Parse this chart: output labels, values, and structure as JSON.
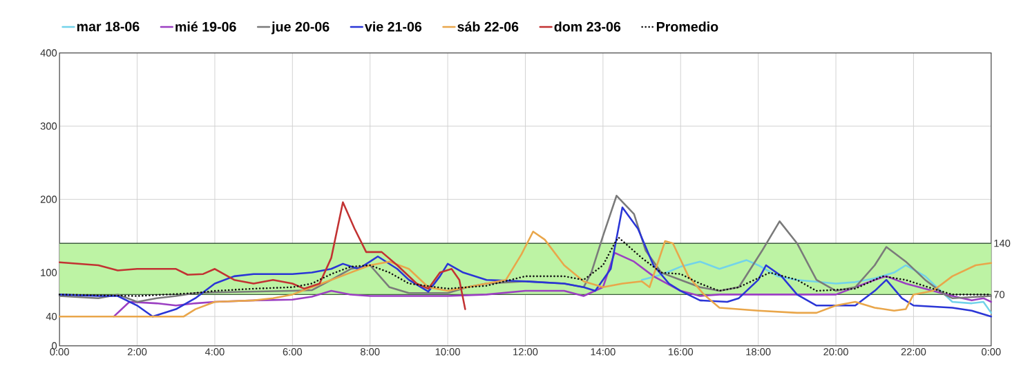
{
  "chart_data": {
    "type": "line",
    "xlim": [
      0,
      24
    ],
    "ylim": [
      0,
      400
    ],
    "xticks": [
      {
        "value": 0,
        "label": "0:00"
      },
      {
        "value": 2,
        "label": "2:00"
      },
      {
        "value": 4,
        "label": "4:00"
      },
      {
        "value": 6,
        "label": "6:00"
      },
      {
        "value": 8,
        "label": "8:00"
      },
      {
        "value": 10,
        "label": "10:00"
      },
      {
        "value": 12,
        "label": "12:00"
      },
      {
        "value": 14,
        "label": "14:00"
      },
      {
        "value": 16,
        "label": "16:00"
      },
      {
        "value": 18,
        "label": "18:00"
      },
      {
        "value": 20,
        "label": "20:00"
      },
      {
        "value": 22,
        "label": "22:00"
      },
      {
        "value": 24,
        "label": "0:00"
      }
    ],
    "yticks": [
      0,
      40,
      100,
      200,
      300,
      400
    ],
    "grid": true,
    "legend": "top",
    "marker": "none",
    "line_style": "solid",
    "bands": [
      {
        "axis": "y",
        "from": 70,
        "to": 140,
        "color": "#bdf3a4"
      }
    ],
    "ref_lines": [
      {
        "axis": "y",
        "value": 140,
        "label": "140",
        "color": "#3f5f3f"
      },
      {
        "axis": "y",
        "value": 70,
        "label": "70",
        "color": "#3f5f3f"
      }
    ],
    "series": [
      {
        "name": "mar 18-06",
        "color": "#72d3ea",
        "x": [
          15,
          15.5,
          16,
          16.5,
          17,
          17.7,
          18,
          18.5,
          19,
          20,
          20.5,
          21,
          21.5,
          21.8,
          22.3,
          22.8,
          23,
          23.5,
          23.8,
          24
        ],
        "values": [
          90,
          97,
          108,
          115,
          105,
          117,
          110,
          95,
          90,
          85,
          87,
          92,
          100,
          110,
          95,
          70,
          60,
          58,
          60,
          45
        ]
      },
      {
        "name": "mié 19-06",
        "color": "#9b3fc2",
        "x": [
          1.4,
          1.8,
          2.5,
          3,
          3.5,
          4,
          5,
          6,
          6.5,
          7,
          7.5,
          8,
          9,
          10,
          11,
          12,
          13,
          13.5,
          14,
          14.3,
          14.8,
          15.3,
          16,
          16.5,
          17,
          18,
          19,
          20,
          20.5,
          21,
          21.3,
          21.8,
          22.5,
          23,
          23.5,
          23.8,
          24
        ],
        "values": [
          40,
          60,
          58,
          55,
          58,
          60,
          62,
          63,
          67,
          75,
          70,
          68,
          68,
          68,
          70,
          75,
          75,
          68,
          80,
          127,
          115,
          95,
          75,
          68,
          70,
          70,
          70,
          70,
          80,
          90,
          95,
          85,
          75,
          68,
          62,
          65,
          60
        ]
      },
      {
        "name": "jue 20-06",
        "color": "#7a7a7a",
        "x": [
          0,
          1,
          1.5,
          2,
          2.5,
          3,
          3.5,
          4,
          5,
          6,
          6.5,
          7,
          7.5,
          8,
          8.5,
          9,
          10,
          10.5,
          11,
          12,
          13,
          13.5,
          13.7,
          14,
          14.35,
          14.8,
          15.1,
          15.5,
          16,
          16.5,
          17,
          17.5,
          18.1,
          18.55,
          19,
          19.5,
          20,
          20.5,
          21,
          21.3,
          21.8,
          22.3,
          22.8,
          23,
          24
        ],
        "values": [
          68,
          65,
          70,
          60,
          65,
          68,
          72,
          73,
          74,
          75,
          76,
          90,
          105,
          110,
          80,
          72,
          72,
          80,
          85,
          88,
          85,
          80,
          100,
          150,
          205,
          180,
          130,
          100,
          90,
          80,
          75,
          80,
          130,
          170,
          140,
          90,
          75,
          80,
          110,
          135,
          115,
          90,
          70,
          65,
          68
        ]
      },
      {
        "name": "vie 21-06",
        "color": "#2a35d6",
        "x": [
          0,
          1,
          1.5,
          2,
          2.4,
          3,
          3.5,
          4,
          4.5,
          5,
          6,
          6.5,
          7,
          7.3,
          7.7,
          8,
          8.2,
          8.7,
          9,
          9.5,
          9.8,
          10,
          10.4,
          11,
          12,
          13,
          13.5,
          13.8,
          14.2,
          14.5,
          14.9,
          15.3,
          15.7,
          16,
          16.5,
          17.2,
          17.5,
          18,
          18.2,
          18.6,
          19,
          19.5,
          20.5,
          21,
          21.3,
          21.7,
          22,
          23,
          23.5,
          24
        ],
        "values": [
          70,
          68,
          68,
          55,
          40,
          50,
          65,
          85,
          95,
          98,
          98,
          100,
          105,
          112,
          105,
          115,
          122,
          105,
          90,
          74,
          95,
          112,
          100,
          90,
          88,
          85,
          80,
          75,
          105,
          189,
          160,
          110,
          85,
          75,
          62,
          60,
          65,
          90,
          110,
          95,
          70,
          55,
          55,
          75,
          90,
          65,
          55,
          52,
          48,
          40
        ]
      },
      {
        "name": "sáb 22-06",
        "color": "#e9a64a",
        "x": [
          0,
          3.2,
          3.5,
          4,
          5,
          5.5,
          6,
          6.5,
          7,
          7.5,
          8,
          8.5,
          9,
          9.5,
          10,
          10.5,
          11,
          11.5,
          11.9,
          12.2,
          12.5,
          13,
          13.5,
          14,
          14.5,
          15,
          15.2,
          15.6,
          15.8,
          16.2,
          16.6,
          17,
          18,
          19,
          19.5,
          20,
          20.5,
          21,
          21.5,
          21.8,
          22,
          22.5,
          23,
          23.6,
          24
        ],
        "values": [
          40,
          40,
          50,
          60,
          62,
          65,
          70,
          80,
          90,
          100,
          110,
          115,
          105,
          80,
          75,
          80,
          85,
          90,
          125,
          156,
          145,
          110,
          88,
          80,
          85,
          88,
          80,
          143,
          140,
          95,
          70,
          52,
          48,
          45,
          45,
          55,
          60,
          52,
          48,
          50,
          70,
          75,
          95,
          110,
          113
        ]
      },
      {
        "name": "dom 23-06",
        "color": "#c23232",
        "x": [
          0,
          1,
          1.5,
          2,
          3,
          3.3,
          3.7,
          4,
          4.5,
          5,
          5.5,
          6,
          6.3,
          6.7,
          7,
          7.3,
          7.6,
          7.9,
          8.3,
          8.7,
          9.2,
          9.5,
          9.8,
          10.1,
          10.3,
          10.45
        ],
        "values": [
          114,
          110,
          103,
          105,
          105,
          97,
          98,
          105,
          90,
          85,
          90,
          85,
          78,
          85,
          120,
          196,
          160,
          128,
          128,
          110,
          85,
          78,
          100,
          105,
          90,
          50
        ]
      },
      {
        "name": "Promedio",
        "color": "#111111",
        "line_style": "dotted",
        "x": [
          0,
          2,
          3.5,
          4,
          5,
          6,
          6.5,
          7,
          7.5,
          8,
          8.5,
          9,
          10,
          11,
          12,
          13,
          13.5,
          14,
          14.3,
          14.4,
          15,
          15.5,
          16,
          16.5,
          17,
          17.5,
          18.3,
          19,
          19.5,
          20.5,
          21.2,
          21.8,
          22.5,
          23,
          24
        ],
        "values": [
          70,
          68,
          72,
          75,
          78,
          80,
          85,
          98,
          108,
          110,
          100,
          85,
          78,
          82,
          95,
          95,
          90,
          110,
          140,
          148,
          120,
          100,
          98,
          85,
          75,
          80,
          100,
          90,
          75,
          78,
          95,
          90,
          78,
          70,
          70
        ]
      }
    ]
  }
}
